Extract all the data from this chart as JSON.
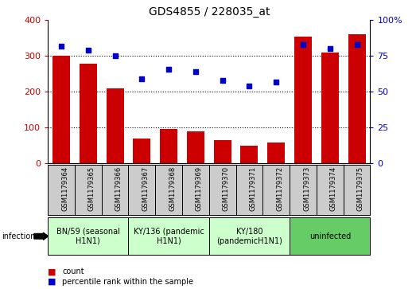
{
  "title": "GDS4855 / 228035_at",
  "samples": [
    "GSM1179364",
    "GSM1179365",
    "GSM1179366",
    "GSM1179367",
    "GSM1179368",
    "GSM1179369",
    "GSM1179370",
    "GSM1179371",
    "GSM1179372",
    "GSM1179373",
    "GSM1179374",
    "GSM1179375"
  ],
  "counts": [
    300,
    278,
    210,
    70,
    95,
    90,
    65,
    50,
    58,
    355,
    310,
    360
  ],
  "percentiles": [
    82,
    79,
    75,
    59,
    66,
    64,
    58,
    54,
    57,
    83,
    80,
    83
  ],
  "bar_color": "#cc0000",
  "dot_color": "#0000cc",
  "ylim_left": [
    0,
    400
  ],
  "ylim_right": [
    0,
    100
  ],
  "yticks_left": [
    0,
    100,
    200,
    300,
    400
  ],
  "yticks_right": [
    0,
    25,
    50,
    75,
    100
  ],
  "groups": [
    {
      "label": "BN/59 (seasonal\nH1N1)",
      "start": 0,
      "end": 3,
      "color": "#ccffcc"
    },
    {
      "label": "KY/136 (pandemic\nH1N1)",
      "start": 3,
      "end": 6,
      "color": "#ccffcc"
    },
    {
      "label": "KY/180\n(pandemicH1N1)",
      "start": 6,
      "end": 9,
      "color": "#ccffcc"
    },
    {
      "label": "uninfected",
      "start": 9,
      "end": 12,
      "color": "#66cc66"
    }
  ],
  "infection_label": "infection",
  "legend_count": "count",
  "legend_percentile": "percentile rank within the sample",
  "grid_color": "#000000",
  "tick_label_color_left": "#cc0000",
  "tick_label_color_right": "#0000cc",
  "bg_color": "#ffffff",
  "plot_bg": "#ffffff",
  "sample_bg": "#cccccc"
}
